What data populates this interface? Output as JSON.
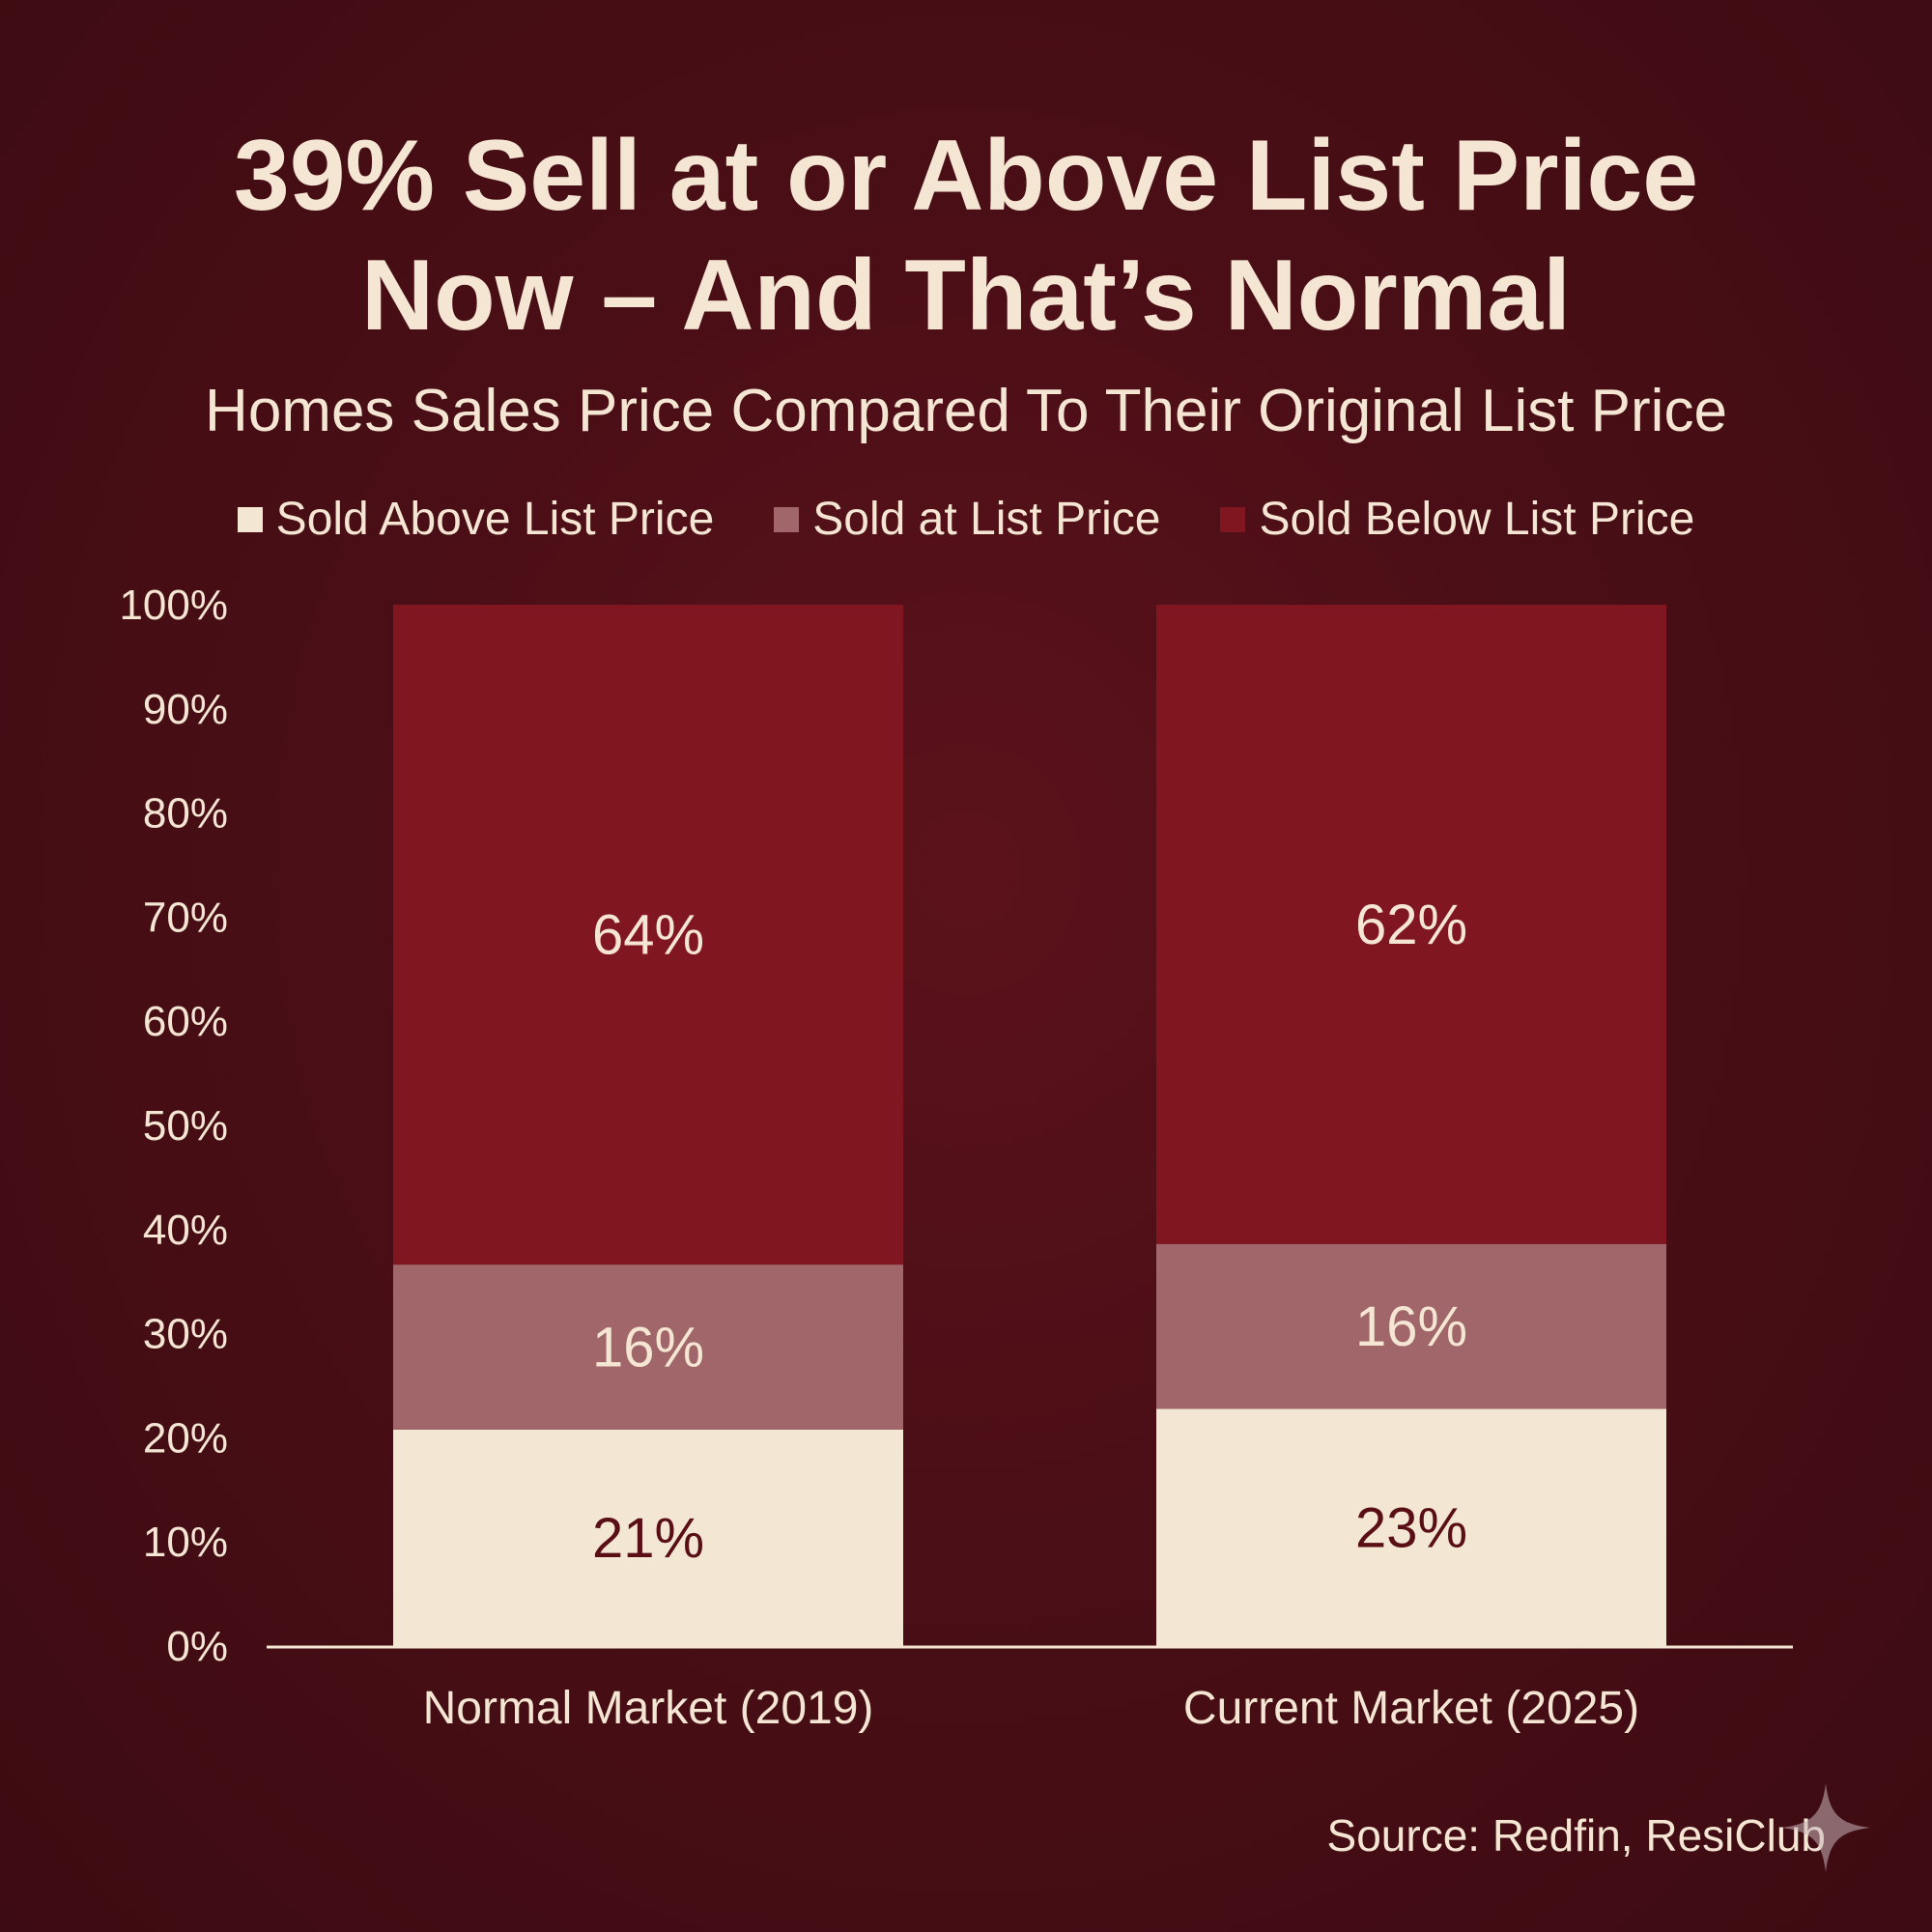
{
  "title_line1": "39% Sell at or Above List Price",
  "title_line2": "Now – And That’s Normal",
  "subtitle": "Homes Sales Price Compared To Their Original List Price",
  "source": "Source: Redfin, ResiClub",
  "colors": {
    "background": "#4a0e16",
    "text": "#f5e6d3",
    "above": "#f3e7d3",
    "at": "#a0666a",
    "below": "#801620",
    "label_dark": "#5a0f17"
  },
  "chart_data": {
    "type": "bar",
    "stacked": true,
    "categories": [
      "Normal Market (2019)",
      "Current Market (2025)"
    ],
    "series": [
      {
        "name": "Sold Above List Price",
        "values": [
          21,
          23
        ],
        "labels": [
          "21%",
          "23%"
        ],
        "color": "#f3e7d3"
      },
      {
        "name": "Sold at List Price",
        "values": [
          16,
          16
        ],
        "labels": [
          "16%",
          "16%"
        ],
        "color": "#a0666a"
      },
      {
        "name": "Sold Below List Price",
        "values": [
          64,
          62
        ],
        "labels": [
          "64%",
          "62%"
        ],
        "color": "#801620"
      }
    ],
    "ylim": [
      0,
      100
    ],
    "y_ticks": [
      "0%",
      "10%",
      "20%",
      "30%",
      "40%",
      "50%",
      "60%",
      "70%",
      "80%",
      "90%",
      "100%"
    ],
    "xlabel": "",
    "ylabel": "",
    "grid": false,
    "legend_position": "top-center"
  }
}
